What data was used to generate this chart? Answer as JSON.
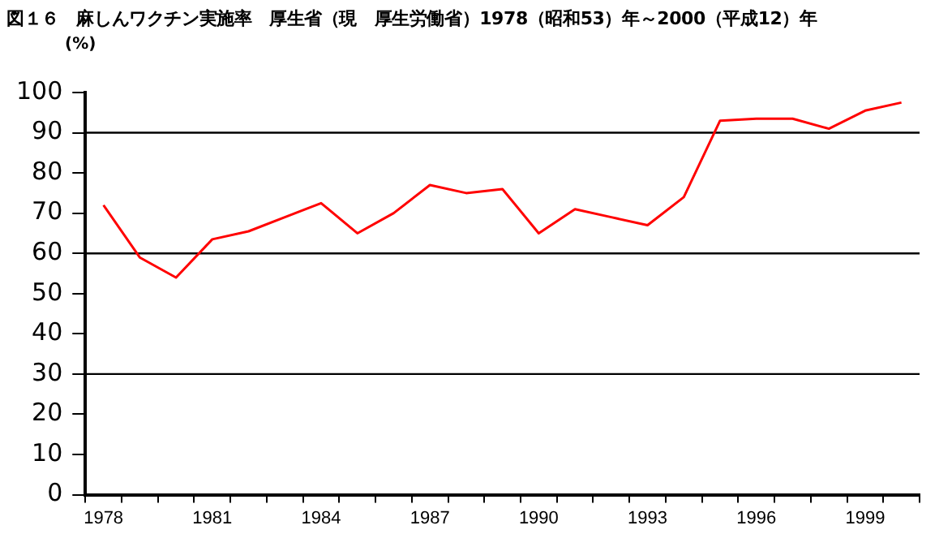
{
  "chart_data": {
    "type": "line",
    "title": "図１６　麻しんワクチン実施率　厚生省（現　厚生労働省）1978（昭和53）年～2000（平成12）年",
    "ylabel": "(%)",
    "categories": [
      "1978",
      null,
      null,
      "1981",
      null,
      null,
      "1984",
      null,
      null,
      "1987",
      null,
      null,
      "1990",
      null,
      null,
      "1993",
      null,
      null,
      "1996",
      null,
      null,
      "1999",
      null
    ],
    "series": [
      {
        "color": "#ff0000",
        "values": [
          72,
          59,
          54,
          63.5,
          65.5,
          69,
          72.5,
          65,
          70,
          77,
          75,
          76,
          65,
          71,
          69,
          67,
          74,
          93,
          93.5,
          93.5,
          91,
          95.5,
          97.5
        ]
      }
    ],
    "ylim": [
      0,
      100
    ],
    "yticks": [
      0,
      10,
      20,
      30,
      40,
      50,
      60,
      70,
      80,
      90,
      100
    ],
    "ref_lines": [
      {
        "axis": "y",
        "value": 30,
        "color": "#000000"
      },
      {
        "axis": "y",
        "value": 60,
        "color": "#000000"
      },
      {
        "axis": "y",
        "value": 90,
        "color": "#000000"
      }
    ],
    "grid": false,
    "legend": false,
    "marker": "none",
    "line_style": "solid"
  }
}
